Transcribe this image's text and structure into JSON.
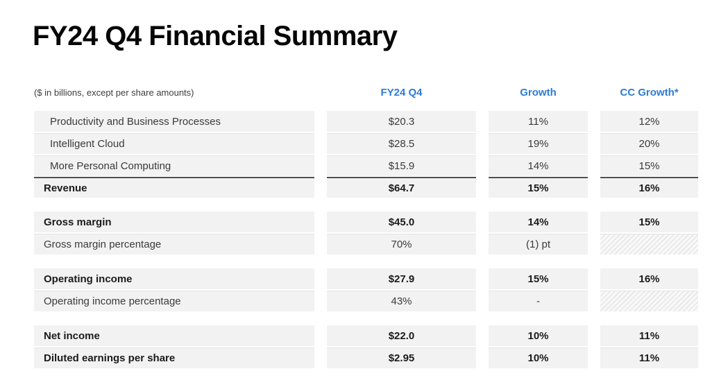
{
  "slide": {
    "title": "FY24 Q4 Financial Summary",
    "units_note": "($ in billions, except per share amounts)"
  },
  "table": {
    "column_headers": [
      "FY24 Q4",
      "Growth",
      "CC Growth*"
    ],
    "groups": [
      {
        "rows": [
          {
            "label": "Productivity and Business Processes",
            "indent": true,
            "bold": false,
            "total_line": false,
            "values": [
              "$20.3",
              "11%",
              "12%"
            ],
            "hatched": [
              false,
              false,
              false
            ]
          },
          {
            "label": "Intelligent Cloud",
            "indent": true,
            "bold": false,
            "total_line": false,
            "values": [
              "$28.5",
              "19%",
              "20%"
            ],
            "hatched": [
              false,
              false,
              false
            ]
          },
          {
            "label": "More Personal Computing",
            "indent": true,
            "bold": false,
            "total_line": false,
            "values": [
              "$15.9",
              "14%",
              "15%"
            ],
            "hatched": [
              false,
              false,
              false
            ]
          },
          {
            "label": "Revenue",
            "indent": false,
            "bold": true,
            "total_line": true,
            "values": [
              "$64.7",
              "15%",
              "16%"
            ],
            "hatched": [
              false,
              false,
              false
            ]
          }
        ]
      },
      {
        "rows": [
          {
            "label": "Gross margin",
            "indent": false,
            "bold": true,
            "total_line": false,
            "values": [
              "$45.0",
              "14%",
              "15%"
            ],
            "hatched": [
              false,
              false,
              false
            ]
          },
          {
            "label": "Gross margin percentage",
            "indent": false,
            "bold": false,
            "total_line": false,
            "values": [
              "70%",
              "(1) pt",
              ""
            ],
            "hatched": [
              false,
              false,
              true
            ]
          }
        ]
      },
      {
        "rows": [
          {
            "label": "Operating income",
            "indent": false,
            "bold": true,
            "total_line": false,
            "values": [
              "$27.9",
              "15%",
              "16%"
            ],
            "hatched": [
              false,
              false,
              false
            ]
          },
          {
            "label": "Operating income percentage",
            "indent": false,
            "bold": false,
            "total_line": false,
            "values": [
              "43%",
              "-",
              ""
            ],
            "hatched": [
              false,
              false,
              true
            ]
          }
        ]
      },
      {
        "rows": [
          {
            "label": "Net income",
            "indent": false,
            "bold": true,
            "total_line": false,
            "values": [
              "$22.0",
              "10%",
              "11%"
            ],
            "hatched": [
              false,
              false,
              false
            ]
          },
          {
            "label": "Diluted earnings per share",
            "indent": false,
            "bold": true,
            "total_line": false,
            "values": [
              "$2.95",
              "10%",
              "11%"
            ],
            "hatched": [
              false,
              false,
              false
            ]
          }
        ]
      }
    ]
  },
  "colors": {
    "accent_blue": "#2B7CD3",
    "cell_background": "#F2F2F2",
    "total_rule": "#4F4F4F",
    "title_text": "#060606"
  }
}
